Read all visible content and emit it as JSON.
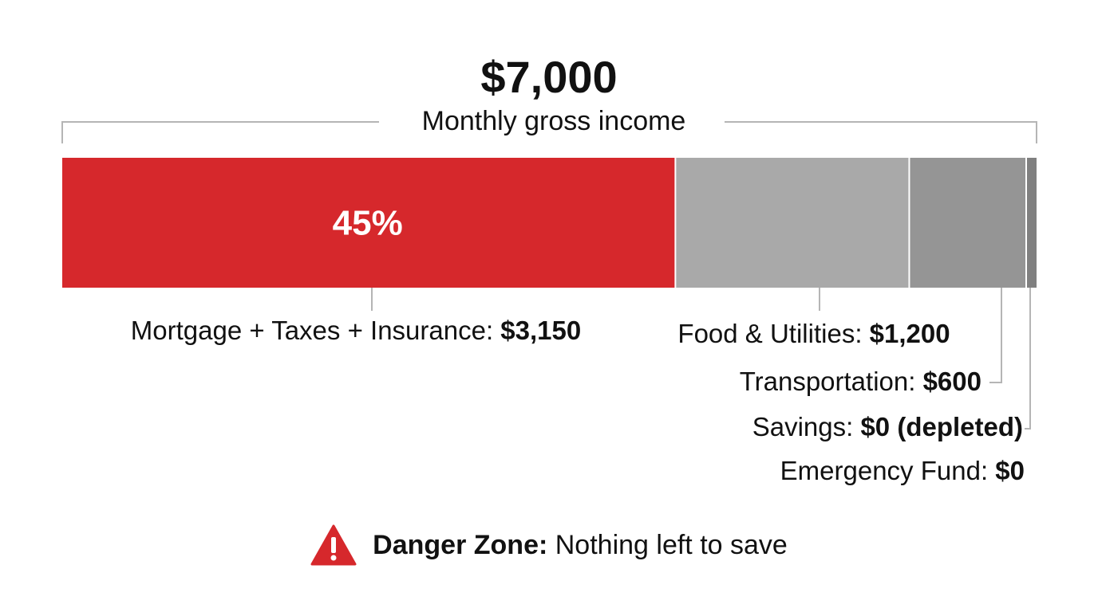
{
  "chart_data": {
    "type": "bar",
    "orientation": "horizontal-stacked",
    "title": "$7,000",
    "subtitle": "Monthly gross income",
    "total": 7000,
    "segments": [
      {
        "name": "Mortgage + Taxes + Insurance",
        "value": 3150,
        "value_label": "$3,150",
        "percent_label": "45%",
        "color": "#d6282c"
      },
      {
        "name": "Food & Utilities",
        "value": 1200,
        "value_label": "$1,200",
        "color": "#a9a9a9"
      },
      {
        "name": "Transportation",
        "value": 600,
        "value_label": "$600",
        "color": "#959595"
      },
      {
        "name": "Savings",
        "value": 0,
        "value_label": "$0 (depleted)",
        "color": "#808080"
      },
      {
        "name": "Emergency Fund",
        "value": 0,
        "value_label": "$0",
        "color": "#808080"
      }
    ]
  },
  "footer": {
    "icon": "warning-triangle-icon",
    "icon_color": "#d6282c",
    "bold_text": "Danger Zone:",
    "text": "Nothing left to save"
  }
}
